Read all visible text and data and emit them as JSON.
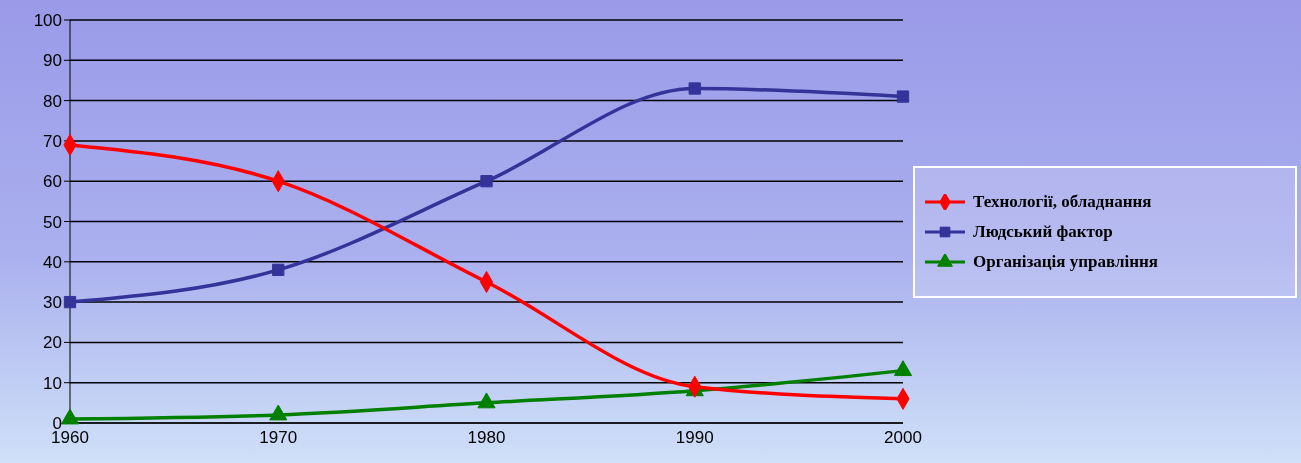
{
  "chart_data": {
    "type": "line",
    "x": [
      1960,
      1970,
      1980,
      1990,
      2000
    ],
    "xlim": [
      1960,
      2000
    ],
    "xticks": [
      1960,
      1970,
      1980,
      1990,
      2000
    ],
    "ylim": [
      0,
      100
    ],
    "yticks": [
      0,
      10,
      20,
      30,
      40,
      50,
      60,
      70,
      80,
      90,
      100
    ],
    "grid": "y",
    "legend": "right",
    "line_style": "solid",
    "series": [
      {
        "name": "Технології, обладнання",
        "color": "#ff0000",
        "marker": "diamond",
        "values": [
          69,
          60,
          35,
          9,
          6
        ]
      },
      {
        "name": "Людський фактор",
        "color": "#333399",
        "marker": "square",
        "values": [
          30,
          38,
          60,
          83,
          81
        ]
      },
      {
        "name": "Організація управління",
        "color": "#008000",
        "marker": "triangle",
        "values": [
          1,
          2,
          5,
          8,
          13
        ]
      }
    ]
  }
}
